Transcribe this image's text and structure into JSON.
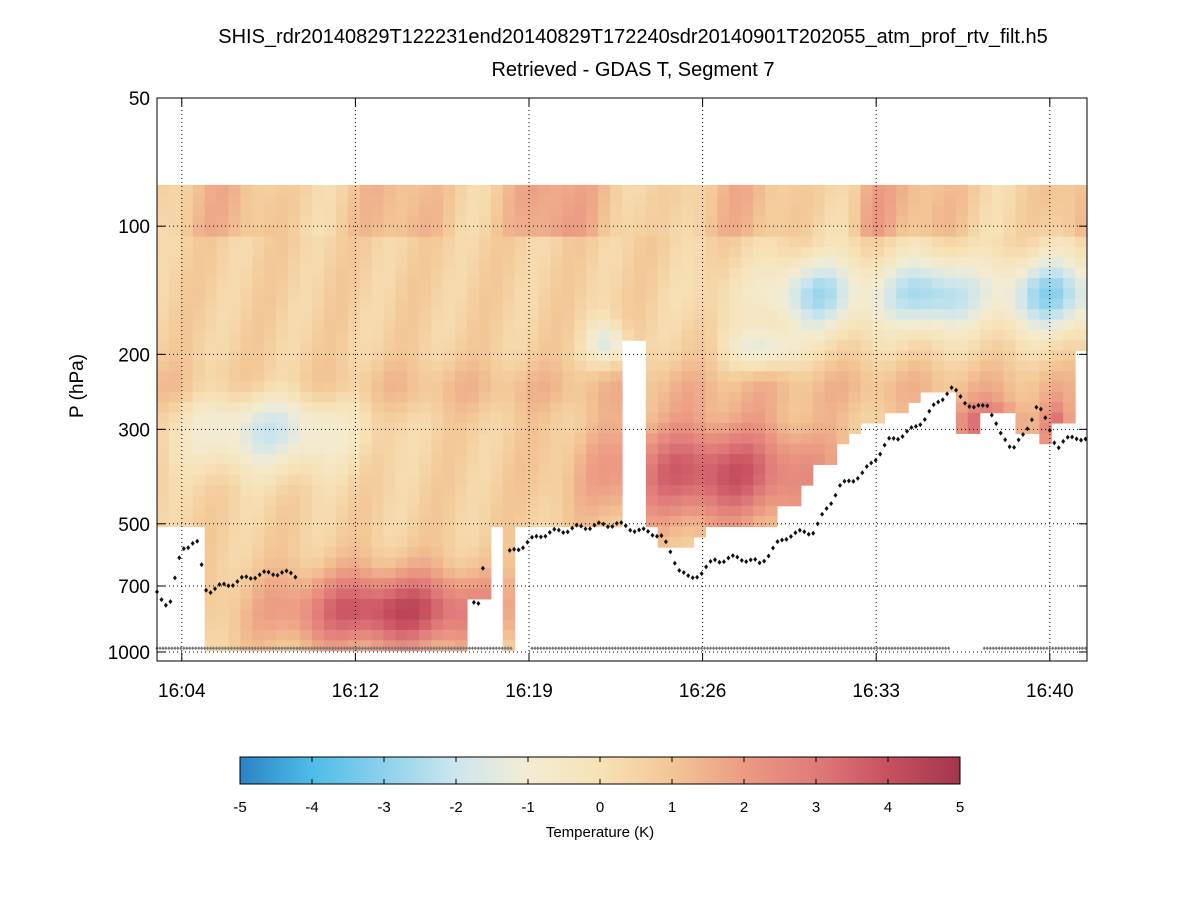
{
  "chart_data": {
    "type": "heatmap",
    "title": "SHIS_rdr20140829T122231end20140829T172240sdr20140901T202055_atm_prof_rtv_filt.h5",
    "subtitle": "Retrieved - GDAS T, Segment 7",
    "xlabel": "",
    "ylabel": "P (hPa)",
    "x_range_minutes": [
      -1.0,
      36.5
    ],
    "x_ticks": [
      {
        "t": 0,
        "label": "16:04"
      },
      {
        "t": 7,
        "label": "16:12"
      },
      {
        "t": 14,
        "label": "16:19"
      },
      {
        "t": 21,
        "label": "16:26"
      },
      {
        "t": 28,
        "label": "16:33"
      },
      {
        "t": 35,
        "label": "16:40"
      }
    ],
    "y_scale": "log",
    "y_reversed": true,
    "y_range_hpa": [
      50,
      1050
    ],
    "y_ticks": [
      {
        "p": 50,
        "label": "50"
      },
      {
        "p": 100,
        "label": "100"
      },
      {
        "p": 200,
        "label": "200"
      },
      {
        "p": 300,
        "label": "300"
      },
      {
        "p": 500,
        "label": "500"
      },
      {
        "p": 700,
        "label": "700"
      },
      {
        "p": 1000,
        "label": "1000"
      }
    ],
    "grid": true,
    "colorbar": {
      "label": "Temperature (K)",
      "range": [
        -5,
        5
      ],
      "ticks": [
        "-5",
        "-4",
        "-3",
        "-2",
        "-1",
        "0",
        "1",
        "2",
        "3",
        "4",
        "5"
      ],
      "colormap": "RdYlBu_r",
      "colors": [
        "#2b83c4",
        "#4dbde9",
        "#8dd1ec",
        "#cde6ee",
        "#f3ecd3",
        "#f7e2b7",
        "#f3c695",
        "#ec9b83",
        "#e07a7a",
        "#c8505f",
        "#a3364e"
      ]
    },
    "data_top_hpa": 80,
    "mixing_layer_approx": [
      {
        "t": -1.0,
        "p": 730
      },
      {
        "t": -0.5,
        "p": 780
      },
      {
        "t": 0.0,
        "p": 570
      },
      {
        "t": 0.6,
        "p": 550
      },
      {
        "t": 1.0,
        "p": 720
      },
      {
        "t": 2.0,
        "p": 690
      },
      {
        "t": 3.0,
        "p": 660
      },
      {
        "t": 4.0,
        "p": 650
      },
      {
        "t": 4.5,
        "p": 660
      },
      {
        "t": 12.0,
        "p": 760
      },
      {
        "t": 11.7,
        "p": 660
      },
      {
        "t": 14.5,
        "p": 530
      },
      {
        "t": 16.0,
        "p": 510
      },
      {
        "t": 17.5,
        "p": 500
      },
      {
        "t": 18.5,
        "p": 520
      },
      {
        "t": 19.3,
        "p": 530
      },
      {
        "t": 20.0,
        "p": 630
      },
      {
        "t": 20.5,
        "p": 680
      },
      {
        "t": 21.5,
        "p": 610
      },
      {
        "t": 22.5,
        "p": 600
      },
      {
        "t": 23.3,
        "p": 620
      },
      {
        "t": 24.0,
        "p": 560
      },
      {
        "t": 24.5,
        "p": 530
      },
      {
        "t": 25.5,
        "p": 520
      },
      {
        "t": 26.5,
        "p": 410
      },
      {
        "t": 27.5,
        "p": 380
      },
      {
        "t": 28.5,
        "p": 320
      },
      {
        "t": 29.5,
        "p": 300
      },
      {
        "t": 30.0,
        "p": 280
      },
      {
        "t": 31.0,
        "p": 240
      },
      {
        "t": 32.0,
        "p": 270
      },
      {
        "t": 32.5,
        "p": 260
      },
      {
        "t": 33.0,
        "p": 310
      },
      {
        "t": 33.5,
        "p": 330
      },
      {
        "t": 34.0,
        "p": 310
      },
      {
        "t": 34.5,
        "p": 260
      },
      {
        "t": 35.3,
        "p": 330
      },
      {
        "t": 36.0,
        "p": 310
      },
      {
        "t": 36.5,
        "p": 320
      }
    ],
    "surface_pressure_hpa": 980
  }
}
